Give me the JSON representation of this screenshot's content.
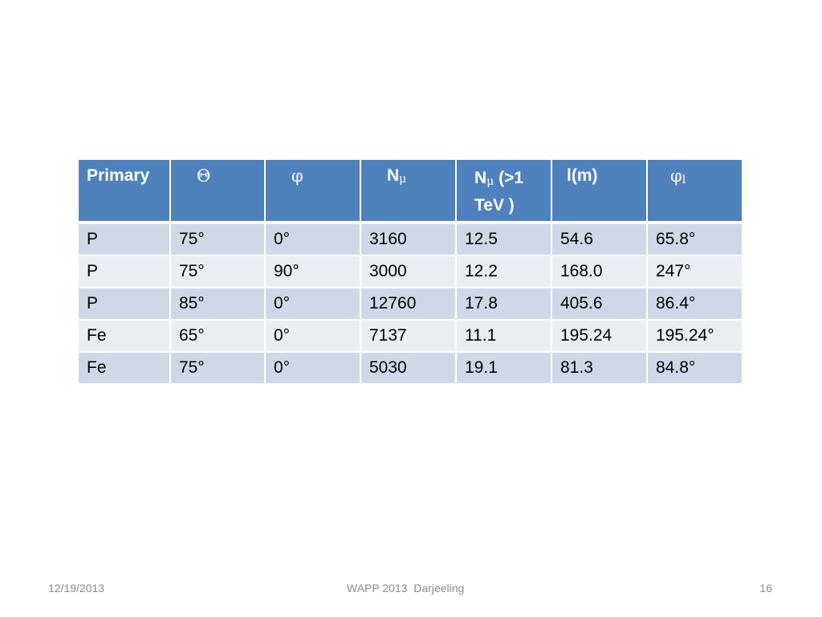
{
  "table": {
    "headers": {
      "primary": "Primary",
      "theta": "Θ",
      "phi": "φ",
      "n_mu_base": "N",
      "n_mu_sub": "μ",
      "n_mu_tev_base": "N",
      "n_mu_tev_sub": "μ",
      "n_mu_tev_rest": "(>1 TeV )",
      "l_m": "l(m)",
      "phi_l_base": "φ",
      "phi_l_sub": "l"
    },
    "rows": [
      {
        "primary": "P",
        "theta": "75°",
        "phi": "0°",
        "n_mu": "3160",
        "n_mu_tev": "12.5",
        "l_m": "54.6",
        "phi_l": "65.8°"
      },
      {
        "primary": "P",
        "theta": "75°",
        "phi": "90°",
        "n_mu": "3000",
        "n_mu_tev": "12.2",
        "l_m": "168.0",
        "phi_l": "247°"
      },
      {
        "primary": "P",
        "theta": "85°",
        "phi": "0°",
        "n_mu": "12760",
        "n_mu_tev": "17.8",
        "l_m": "405.6",
        "phi_l": "86.4°"
      },
      {
        "primary": "Fe",
        "theta": "65°",
        "phi": "0°",
        "n_mu": "7137",
        "n_mu_tev": "11.1",
        "l_m": "195.24",
        "phi_l": "195.24°"
      },
      {
        "primary": "Fe",
        "theta": "75°",
        "phi": "0°",
        "n_mu": "5030",
        "n_mu_tev": "19.1",
        "l_m": "81.3",
        "phi_l": "84.8°"
      }
    ]
  },
  "footer": {
    "date": "12/19/2013",
    "center": "WAPP 2013  Darjeeling",
    "page": "16"
  }
}
